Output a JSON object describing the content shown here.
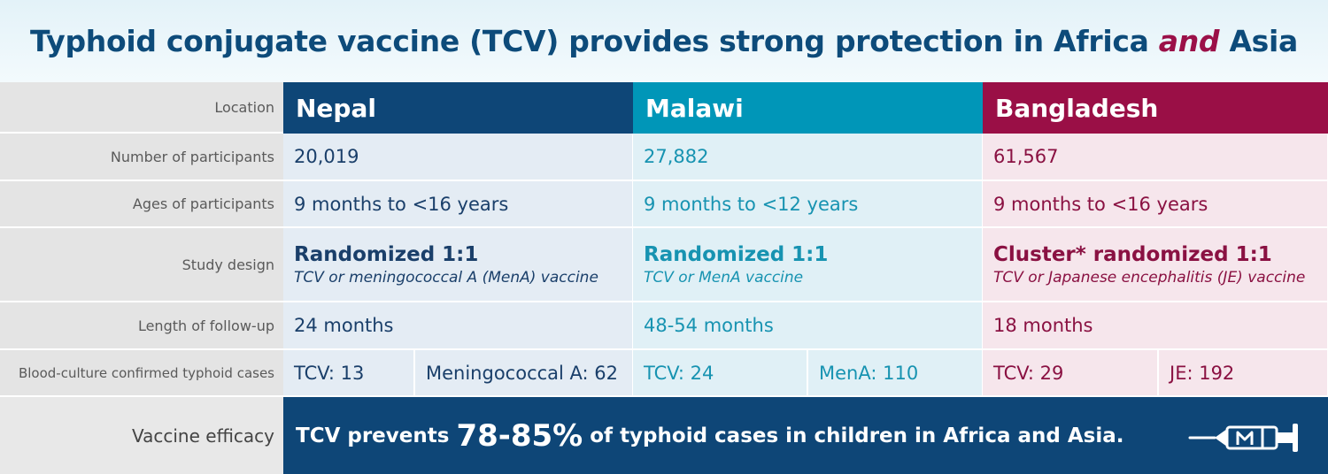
{
  "title": {
    "before": "Typhoid conjugate vaccine (TCV) provides strong protection in Africa ",
    "emphasis": "and",
    "after": " Asia"
  },
  "row_labels": {
    "location": "Location",
    "participants": "Number of participants",
    "ages": "Ages of participants",
    "design": "Study design",
    "followup": "Length of follow-up",
    "cases": "Blood-culture confirmed typhoid cases",
    "efficacy": "Vaccine efficacy"
  },
  "sites": [
    {
      "name": "Nepal",
      "participants": "20,019",
      "ages": "9 months to <16 years",
      "design_main": "Randomized 1:1",
      "design_sub": "TCV or meningococcal A (MenA) vaccine",
      "followup": "24 months",
      "cases_tcv": "TCV: 13",
      "cases_control": "Meningococcal A: 62"
    },
    {
      "name": "Malawi",
      "participants": "27,882",
      "ages": "9 months to <12 years",
      "design_main": "Randomized 1:1",
      "design_sub": "TCV or MenA vaccine",
      "followup": "48-54 months",
      "cases_tcv": "TCV: 24",
      "cases_control": "MenA: 110"
    },
    {
      "name": "Bangladesh",
      "participants": "61,567",
      "ages": "9 months to <16 years",
      "design_main": "Cluster* randomized 1:1",
      "design_sub": "TCV or Japanese encephalitis (JE) vaccine",
      "followup": "18 months",
      "cases_tcv": "TCV: 29",
      "cases_control": "JE: 192"
    }
  ],
  "efficacy": {
    "before": "TCV prevents",
    "highlight": "78-85%",
    "after": "of typhoid cases in children in Africa and Asia."
  },
  "icons": {
    "efficacy": "syringe-icon"
  },
  "colors": {
    "nepal": "#0e4677",
    "malawi": "#0096b8",
    "bangladesh": "#9a0f46",
    "title": "#0d4b7a"
  }
}
